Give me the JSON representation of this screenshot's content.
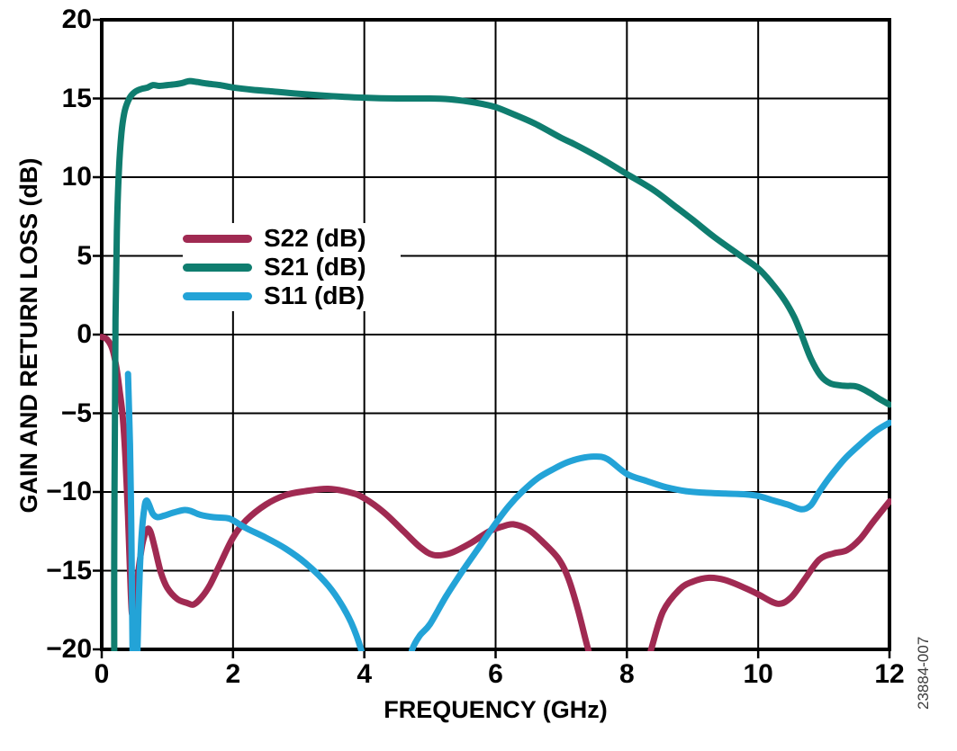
{
  "figure": {
    "watermark": "23884-007"
  },
  "chart_data": {
    "type": "line",
    "title": "",
    "xlabel": "FREQUENCY (GHz)",
    "ylabel": "GAIN AND RETURN LOSS (dB)",
    "xlim": [
      0,
      12
    ],
    "ylim": [
      -20,
      20
    ],
    "x_ticks": [
      0,
      2,
      4,
      6,
      8,
      10,
      12
    ],
    "x_tick_labels": [
      "0",
      "2",
      "4",
      "6",
      "8",
      "10",
      "12"
    ],
    "y_ticks": [
      20,
      15,
      10,
      5,
      0,
      -5,
      -10,
      -15,
      -20
    ],
    "y_tick_labels": [
      "20",
      "15",
      "10",
      "5",
      "0",
      "−5",
      "−10",
      "−15",
      "−20"
    ],
    "grid": true,
    "legend_position": "upper-left-inside",
    "series": [
      {
        "name": "S22 (dB)",
        "color": "#a02a52",
        "points": [
          [
            0,
            -0.15
          ],
          [
            0.08,
            -0.3
          ],
          [
            0.16,
            -0.9
          ],
          [
            0.22,
            -2
          ],
          [
            0.27,
            -3.5
          ],
          [
            0.32,
            -5.2
          ],
          [
            0.36,
            -7.8
          ],
          [
            0.4,
            -11.5
          ],
          [
            0.43,
            -15
          ],
          [
            0.46,
            -17.7
          ],
          [
            0.5,
            -17.1
          ],
          [
            0.55,
            -15.3
          ],
          [
            0.62,
            -13.3
          ],
          [
            0.69,
            -12.4
          ],
          [
            0.74,
            -12.5
          ],
          [
            0.8,
            -13.4
          ],
          [
            0.9,
            -15.1
          ],
          [
            1,
            -16.1
          ],
          [
            1.15,
            -16.8
          ],
          [
            1.3,
            -17.05
          ],
          [
            1.4,
            -17.15
          ],
          [
            1.52,
            -16.7
          ],
          [
            1.65,
            -15.9
          ],
          [
            1.8,
            -14.6
          ],
          [
            2,
            -12.9
          ],
          [
            2.2,
            -11.8
          ],
          [
            2.5,
            -10.8
          ],
          [
            2.8,
            -10.2
          ],
          [
            3.1,
            -9.95
          ],
          [
            3.45,
            -9.8
          ],
          [
            3.8,
            -10.05
          ],
          [
            4,
            -10.4
          ],
          [
            4.3,
            -11.3
          ],
          [
            4.6,
            -12.5
          ],
          [
            4.85,
            -13.5
          ],
          [
            5.05,
            -14
          ],
          [
            5.3,
            -13.9
          ],
          [
            5.6,
            -13.3
          ],
          [
            5.9,
            -12.5
          ],
          [
            6.1,
            -12.2
          ],
          [
            6.27,
            -12.05
          ],
          [
            6.5,
            -12.4
          ],
          [
            6.7,
            -13.1
          ],
          [
            6.95,
            -14.2
          ],
          [
            7.1,
            -15.4
          ],
          [
            7.25,
            -17.4
          ],
          [
            7.41,
            -20
          ],
          [
            7.55,
            -21.8
          ],
          [
            8.25,
            -21.8
          ],
          [
            8.37,
            -20
          ],
          [
            8.55,
            -17.6
          ],
          [
            8.8,
            -16.2
          ],
          [
            9,
            -15.7
          ],
          [
            9.25,
            -15.45
          ],
          [
            9.5,
            -15.6
          ],
          [
            9.8,
            -16.1
          ],
          [
            10,
            -16.5
          ],
          [
            10.3,
            -17.1
          ],
          [
            10.5,
            -16.7
          ],
          [
            10.7,
            -15.6
          ],
          [
            10.93,
            -14.3
          ],
          [
            11.15,
            -13.9
          ],
          [
            11.35,
            -13.7
          ],
          [
            11.55,
            -13
          ],
          [
            11.75,
            -11.9
          ],
          [
            12,
            -10.6
          ]
        ]
      },
      {
        "name": "S21 (dB)",
        "color": "#0f7d6f",
        "points": [
          [
            0.19,
            -21
          ],
          [
            0.19,
            -14
          ],
          [
            0.2,
            -6
          ],
          [
            0.21,
            1
          ],
          [
            0.23,
            6.5
          ],
          [
            0.26,
            10.3
          ],
          [
            0.3,
            12.8
          ],
          [
            0.35,
            14.2
          ],
          [
            0.42,
            15
          ],
          [
            0.5,
            15.4
          ],
          [
            0.6,
            15.6
          ],
          [
            0.7,
            15.7
          ],
          [
            0.78,
            15.85
          ],
          [
            0.88,
            15.8
          ],
          [
            1,
            15.85
          ],
          [
            1.12,
            15.9
          ],
          [
            1.22,
            15.98
          ],
          [
            1.33,
            16.1
          ],
          [
            1.45,
            16.05
          ],
          [
            1.6,
            15.95
          ],
          [
            1.8,
            15.85
          ],
          [
            2,
            15.7
          ],
          [
            2.3,
            15.55
          ],
          [
            2.6,
            15.45
          ],
          [
            3,
            15.3
          ],
          [
            3.5,
            15.15
          ],
          [
            4,
            15.05
          ],
          [
            4.5,
            15
          ],
          [
            5,
            15
          ],
          [
            5.3,
            14.95
          ],
          [
            5.6,
            14.8
          ],
          [
            5.8,
            14.65
          ],
          [
            6,
            14.45
          ],
          [
            6.3,
            13.95
          ],
          [
            6.6,
            13.4
          ],
          [
            7,
            12.5
          ],
          [
            7.2,
            12.1
          ],
          [
            7.6,
            11.2
          ],
          [
            8,
            10.2
          ],
          [
            8.4,
            9.2
          ],
          [
            8.75,
            8.1
          ],
          [
            9,
            7.3
          ],
          [
            9.33,
            6.2
          ],
          [
            9.7,
            5.1
          ],
          [
            10,
            4.2
          ],
          [
            10.2,
            3.3
          ],
          [
            10.4,
            2.2
          ],
          [
            10.55,
            1.1
          ],
          [
            10.66,
            0
          ],
          [
            10.8,
            -1.5
          ],
          [
            10.95,
            -2.6
          ],
          [
            11.1,
            -3.1
          ],
          [
            11.3,
            -3.25
          ],
          [
            11.5,
            -3.3
          ],
          [
            11.7,
            -3.7
          ],
          [
            11.85,
            -4.1
          ],
          [
            12,
            -4.45
          ]
        ]
      },
      {
        "name": "S11 (dB)",
        "color": "#23a3d7",
        "points": [
          [
            0.4,
            -2.5
          ],
          [
            0.43,
            -7
          ],
          [
            0.45,
            -12
          ],
          [
            0.462,
            -17
          ],
          [
            0.472,
            -21
          ],
          [
            0.487,
            -21.5
          ],
          [
            0.5,
            -17.7
          ],
          [
            0.513,
            -21.5
          ],
          [
            0.53,
            -21.5
          ],
          [
            0.545,
            -20
          ],
          [
            0.56,
            -17.5
          ],
          [
            0.58,
            -15
          ],
          [
            0.61,
            -12.6
          ],
          [
            0.65,
            -11
          ],
          [
            0.68,
            -10.55
          ],
          [
            0.72,
            -10.8
          ],
          [
            0.78,
            -11.4
          ],
          [
            0.85,
            -11.6
          ],
          [
            0.95,
            -11.5
          ],
          [
            1.1,
            -11.3
          ],
          [
            1.25,
            -11.15
          ],
          [
            1.35,
            -11.2
          ],
          [
            1.5,
            -11.45
          ],
          [
            1.7,
            -11.6
          ],
          [
            1.9,
            -11.65
          ],
          [
            2,
            -11.8
          ],
          [
            2.2,
            -12.3
          ],
          [
            2.5,
            -12.9
          ],
          [
            2.8,
            -13.6
          ],
          [
            3.1,
            -14.5
          ],
          [
            3.4,
            -15.7
          ],
          [
            3.6,
            -16.8
          ],
          [
            3.8,
            -18.3
          ],
          [
            3.95,
            -20
          ],
          [
            4.05,
            -21.8
          ],
          [
            4.6,
            -21.8
          ],
          [
            4.73,
            -20
          ],
          [
            4.85,
            -19.1
          ],
          [
            5,
            -18.4
          ],
          [
            5.25,
            -16.6
          ],
          [
            5.5,
            -15
          ],
          [
            5.75,
            -13.5
          ],
          [
            6,
            -12
          ],
          [
            6.2,
            -10.9
          ],
          [
            6.4,
            -10
          ],
          [
            6.65,
            -9.1
          ],
          [
            6.9,
            -8.5
          ],
          [
            7.1,
            -8.1
          ],
          [
            7.3,
            -7.85
          ],
          [
            7.5,
            -7.75
          ],
          [
            7.7,
            -7.9
          ],
          [
            8,
            -8.85
          ],
          [
            8.3,
            -9.3
          ],
          [
            8.6,
            -9.7
          ],
          [
            8.9,
            -9.95
          ],
          [
            9.2,
            -10.05
          ],
          [
            9.5,
            -10.1
          ],
          [
            9.8,
            -10.15
          ],
          [
            10,
            -10.25
          ],
          [
            10.2,
            -10.5
          ],
          [
            10.45,
            -10.8
          ],
          [
            10.66,
            -11.1
          ],
          [
            10.8,
            -10.85
          ],
          [
            10.93,
            -10
          ],
          [
            11.1,
            -9
          ],
          [
            11.34,
            -7.8
          ],
          [
            11.6,
            -6.8
          ],
          [
            11.8,
            -6.1
          ],
          [
            12,
            -5.6
          ]
        ]
      }
    ]
  }
}
